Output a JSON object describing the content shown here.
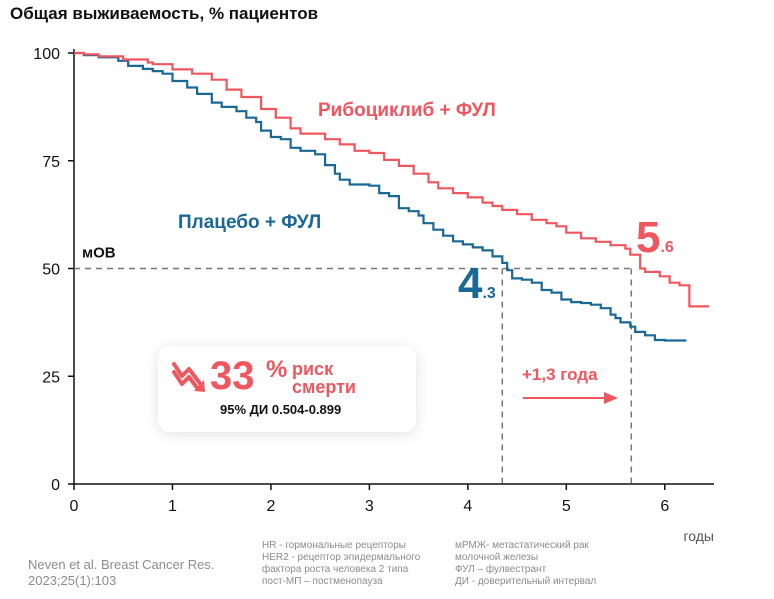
{
  "title": "Общая выживаемость, % пациентов",
  "colors": {
    "ribo": "#f0565e",
    "placebo": "#1a6896",
    "axis": "#111111",
    "ref": "#777777"
  },
  "chart_data": {
    "type": "line",
    "title": "Общая выживаемость, % пациентов",
    "xlabel": "годы",
    "ylabel": "",
    "xlim": [
      0,
      6.5
    ],
    "ylim": [
      0,
      100
    ],
    "xticks": [
      "0",
      "1",
      "2",
      "3",
      "4",
      "5",
      "6"
    ],
    "yticks": [
      "0",
      "25",
      "50",
      "75",
      "100"
    ],
    "series": [
      {
        "name": "Рибоциклиб + ФУЛ",
        "label_text": "Рибоциклиб + ФУЛ",
        "median_big": "5",
        "median_small": ".6",
        "points": [
          [
            0,
            100
          ],
          [
            0.1,
            99.7
          ],
          [
            0.25,
            99.2
          ],
          [
            0.5,
            98.5
          ],
          [
            0.75,
            97.8
          ],
          [
            0.8,
            97.4
          ],
          [
            1.0,
            96.2
          ],
          [
            1.2,
            95.2
          ],
          [
            1.4,
            93.8
          ],
          [
            1.55,
            91.5
          ],
          [
            1.7,
            89.8
          ],
          [
            1.9,
            87.0
          ],
          [
            2.05,
            85.0
          ],
          [
            2.2,
            82.5
          ],
          [
            2.3,
            81.3
          ],
          [
            2.55,
            80.0
          ],
          [
            2.7,
            78.8
          ],
          [
            2.85,
            77.3
          ],
          [
            3.0,
            76.8
          ],
          [
            3.15,
            75.2
          ],
          [
            3.3,
            73.8
          ],
          [
            3.45,
            72.0
          ],
          [
            3.6,
            70.0
          ],
          [
            3.7,
            68.6
          ],
          [
            3.85,
            67.5
          ],
          [
            4.0,
            66.5
          ],
          [
            4.15,
            65.3
          ],
          [
            4.25,
            64.5
          ],
          [
            4.35,
            63.6
          ],
          [
            4.5,
            62.6
          ],
          [
            4.65,
            61.3
          ],
          [
            4.8,
            60.5
          ],
          [
            4.9,
            59.8
          ],
          [
            5.0,
            58.3
          ],
          [
            5.15,
            57.0
          ],
          [
            5.3,
            56.2
          ],
          [
            5.45,
            55.4
          ],
          [
            5.6,
            54.6
          ],
          [
            5.65,
            53.2
          ],
          [
            5.75,
            50.0
          ],
          [
            5.8,
            49.2
          ],
          [
            5.95,
            48.2
          ],
          [
            6.05,
            46.7
          ],
          [
            6.15,
            46.1
          ],
          [
            6.25,
            46.1
          ],
          [
            6.25,
            41.2
          ],
          [
            6.45,
            41.2
          ]
        ],
        "median_x": 5.66
      },
      {
        "name": "Плацебо + ФУЛ",
        "label_text": "Плацебо + ФУЛ",
        "median_big": "4",
        "median_small": ".3",
        "points": [
          [
            0,
            100
          ],
          [
            0.1,
            99.5
          ],
          [
            0.25,
            99.0
          ],
          [
            0.45,
            98.2
          ],
          [
            0.55,
            97.0
          ],
          [
            0.7,
            96.3
          ],
          [
            0.8,
            95.8
          ],
          [
            0.9,
            95.2
          ],
          [
            1.0,
            93.5
          ],
          [
            1.15,
            92.0
          ],
          [
            1.25,
            90.5
          ],
          [
            1.4,
            88.5
          ],
          [
            1.5,
            87.5
          ],
          [
            1.65,
            86.5
          ],
          [
            1.75,
            85.0
          ],
          [
            1.85,
            84.0
          ],
          [
            1.9,
            82.0
          ],
          [
            2.0,
            80.5
          ],
          [
            2.1,
            80.0
          ],
          [
            2.2,
            78.0
          ],
          [
            2.3,
            77.3
          ],
          [
            2.45,
            76.5
          ],
          [
            2.55,
            74.0
          ],
          [
            2.65,
            72.0
          ],
          [
            2.7,
            70.6
          ],
          [
            2.8,
            69.5
          ],
          [
            3.0,
            69.2
          ],
          [
            3.1,
            67.5
          ],
          [
            3.2,
            66.8
          ],
          [
            3.3,
            64.0
          ],
          [
            3.4,
            63.3
          ],
          [
            3.5,
            62.3
          ],
          [
            3.55,
            60.5
          ],
          [
            3.65,
            59.0
          ],
          [
            3.75,
            57.6
          ],
          [
            3.85,
            56.3
          ],
          [
            3.95,
            55.6
          ],
          [
            4.05,
            54.9
          ],
          [
            4.15,
            54.2
          ],
          [
            4.25,
            52.8
          ],
          [
            4.35,
            51.3
          ],
          [
            4.4,
            49.6
          ],
          [
            4.45,
            47.7
          ],
          [
            4.55,
            47.4
          ],
          [
            4.65,
            46.7
          ],
          [
            4.75,
            45.0
          ],
          [
            4.85,
            44.4
          ],
          [
            4.95,
            42.8
          ],
          [
            5.05,
            42.2
          ],
          [
            5.15,
            42.0
          ],
          [
            5.25,
            41.6
          ],
          [
            5.35,
            40.8
          ],
          [
            5.45,
            39.3
          ],
          [
            5.5,
            38.5
          ],
          [
            5.55,
            37.5
          ],
          [
            5.65,
            36.5
          ],
          [
            5.7,
            35.3
          ],
          [
            5.8,
            34.5
          ],
          [
            5.9,
            33.4
          ],
          [
            6.0,
            33.3
          ],
          [
            6.22,
            33.3
          ]
        ],
        "median_x": 4.35
      }
    ],
    "median_line_y": 50,
    "median_label": "мОВ"
  },
  "gain_label": "+1,3 года",
  "hr": {
    "percent": "33",
    "percent_sign": "%",
    "text_line1": "риск",
    "text_line2": "смерти",
    "ci": "95% ДИ 0.504-0.899"
  },
  "footnotes_left": [
    "HR - гормональные рецепторы",
    "HER2 - рецептор эпидермального",
    "фактора роста человека 2 типа",
    "пост-МП – постменопауза"
  ],
  "footnotes_right": [
    "мРМЖ- метастатический рак",
    "молочной железы",
    "ФУЛ – фулвестрант",
    "ДИ - доверительный интервал"
  ],
  "reference": [
    "Neven et al. Breast Cancer Res.",
    "2023;25(1):103"
  ]
}
